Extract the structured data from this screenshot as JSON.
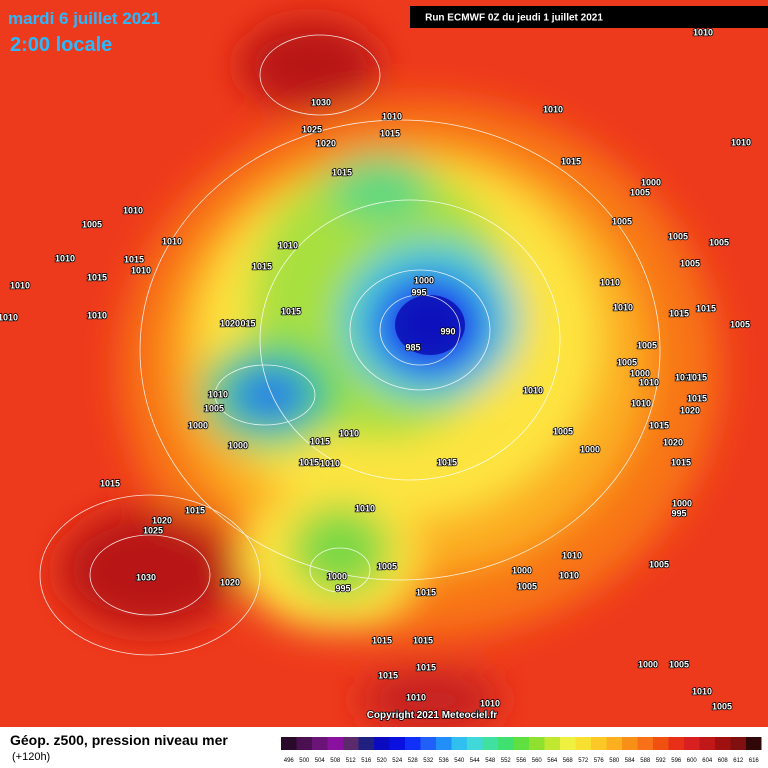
{
  "header": {
    "date": "mardi 6 juillet 2021",
    "time": "2:00 locale",
    "run": "Run ECMWF 0Z du jeudi 1 juillet 2021"
  },
  "copyright": "Copyright 2021 Meteociel.fr",
  "legend": {
    "title": "Géop. z500, pression niveau mer",
    "lead": "(+120h)",
    "values": [
      496,
      500,
      504,
      508,
      512,
      516,
      520,
      524,
      528,
      532,
      536,
      540,
      544,
      548,
      552,
      556,
      560,
      564,
      568,
      572,
      576,
      580,
      584,
      588,
      592,
      596,
      600,
      604,
      608,
      612,
      616
    ]
  },
  "isobar_labels": [
    "1010",
    "1030",
    "1010",
    "1010",
    "1010",
    "1025",
    "1015",
    "1020",
    "1015",
    "1015",
    "1000",
    "1005",
    "1010",
    "1005",
    "1005",
    "1010",
    "1010",
    "1005",
    "1005",
    "1010",
    "1015",
    "1010",
    "1015",
    "1005",
    "1000",
    "1015",
    "1010",
    "995",
    "1010",
    "1010",
    "1015",
    "1010",
    "1020",
    "015",
    "990",
    "1010",
    "1015",
    "1015",
    "1005",
    "985",
    "1005",
    "1005",
    "1000",
    "1010",
    "1010",
    "1015",
    "1010",
    "1010",
    "1005",
    "1010",
    "1015",
    "1020",
    "1000",
    "1005",
    "1015",
    "1010",
    "1015",
    "1000",
    "1000",
    "1020",
    "1015",
    "1015",
    "1010",
    "1015",
    "1015",
    "1010",
    "1015",
    "1000",
    "995",
    "1020",
    "1025",
    "1010",
    "1005",
    "1000",
    "1010",
    "1005",
    "1030",
    "1020",
    "1000",
    "995",
    "1005",
    "1015",
    "1015",
    "1015",
    "1015",
    "1000",
    "1005",
    "1015",
    "1010",
    "1010",
    "1010",
    "1005"
  ]
}
